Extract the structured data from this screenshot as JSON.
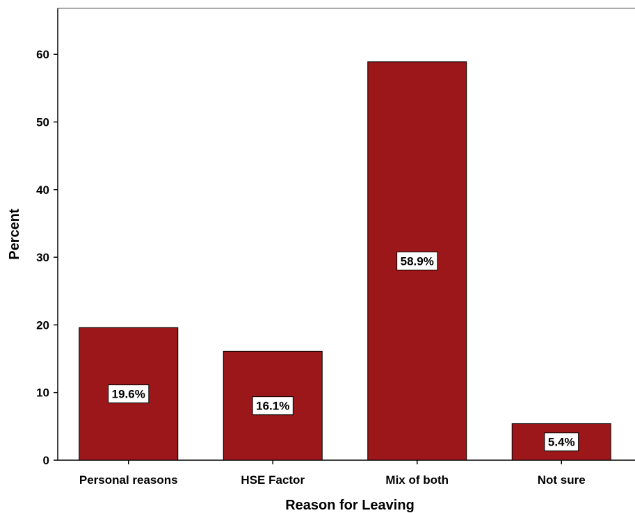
{
  "chart_data": {
    "type": "bar",
    "title": "",
    "xlabel": "Reason for Leaving",
    "ylabel": "Percent",
    "categories": [
      "Personal reasons",
      "HSE Factor",
      "Mix of both",
      "Not sure"
    ],
    "values": [
      19.6,
      16.1,
      58.9,
      5.4
    ],
    "data_labels": [
      "19.6%",
      "16.1%",
      "58.9%",
      "5.4%"
    ],
    "ylim": [
      0,
      66.8
    ],
    "yticks": [
      0,
      10,
      20,
      30,
      40,
      50,
      60
    ],
    "grid": false,
    "legend": "none",
    "bar_color": "#9b1719",
    "bar_edge_color": "#000000"
  }
}
